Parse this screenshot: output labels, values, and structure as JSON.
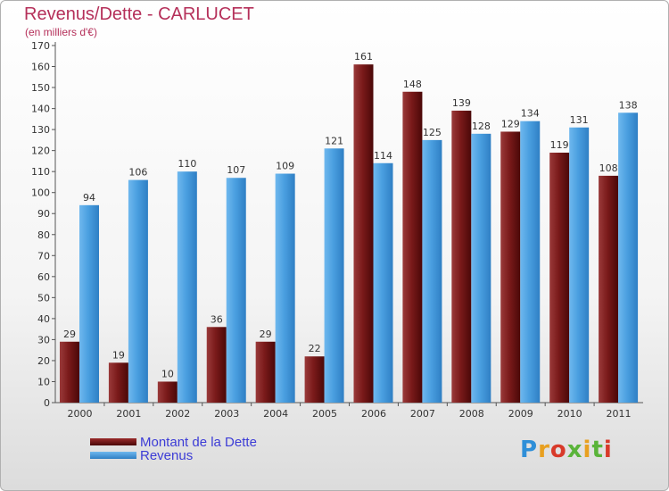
{
  "chart_data": {
    "type": "bar",
    "title": "Revenus/Dette - CARLUCET",
    "subtitle": "(en milliers d'€)",
    "xlabel": "",
    "ylabel": "",
    "ylim": [
      0,
      170
    ],
    "ytick_step": 10,
    "grid": false,
    "legend_position": "bottom-left",
    "categories": [
      "2000",
      "2001",
      "2002",
      "2003",
      "2004",
      "2005",
      "2006",
      "2007",
      "2008",
      "2009",
      "2010",
      "2011"
    ],
    "series": [
      {
        "name": "Montant de la Dette",
        "color": "#7a1a1a",
        "values": [
          29,
          19,
          10,
          36,
          29,
          22,
          161,
          148,
          139,
          129,
          119,
          108
        ]
      },
      {
        "name": "Revenus",
        "color": "#4a9fe0",
        "values": [
          94,
          106,
          110,
          107,
          109,
          121,
          114,
          125,
          128,
          134,
          131,
          138
        ]
      }
    ]
  },
  "legend": {
    "items": [
      {
        "label": "Montant de la Dette",
        "color": "#7a1a1a"
      },
      {
        "label": "Revenus",
        "color": "#4a9fe0"
      }
    ]
  },
  "logo": {
    "text": "Proxiti",
    "letter_colors": [
      "#2f8fd8",
      "#e8a020",
      "#d83a2a",
      "#5ab43a",
      "#e8a020",
      "#5ab43a",
      "#d83a2a"
    ]
  }
}
